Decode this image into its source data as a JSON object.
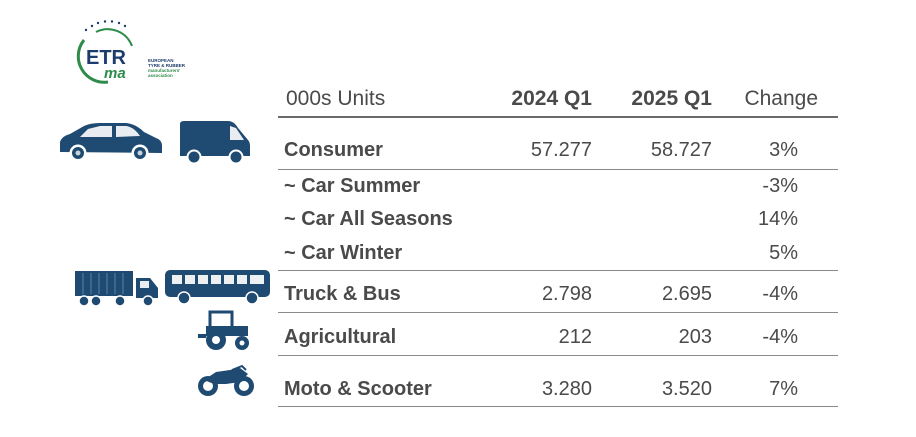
{
  "logo": {
    "mark": "ETRma",
    "line1": "EUROPEAN",
    "line2": "TYRE & RUBBER",
    "line3": "manufacturers'",
    "line4": "association",
    "icon": "etrma-logo-icon",
    "colors": {
      "navy": "#1c3c6e",
      "green": "#2e8b4a"
    }
  },
  "table": {
    "headers": {
      "units": "000s Units",
      "col_2024": "2024 Q1",
      "col_2025": "2025 Q1",
      "col_change": "Change"
    },
    "rows": [
      {
        "label": "Consumer",
        "v2024": "57.277",
        "v2025": "58.727",
        "change": "3%",
        "icons": [
          "car-icon",
          "van-icon"
        ]
      },
      {
        "label": "~ Car Summer",
        "v2024": "",
        "v2025": "",
        "change": "-3%"
      },
      {
        "label": "~ Car All Seasons",
        "v2024": "",
        "v2025": "",
        "change": "14%"
      },
      {
        "label": "~ Car Winter",
        "v2024": "",
        "v2025": "",
        "change": "5%"
      },
      {
        "label": "Truck & Bus",
        "v2024": "2.798",
        "v2025": "2.695",
        "change": "-4%",
        "icons": [
          "truck-icon",
          "bus-icon"
        ]
      },
      {
        "label": "Agricultural",
        "v2024": "212",
        "v2025": "203",
        "change": "-4%",
        "icons": [
          "tractor-icon"
        ]
      },
      {
        "label": "Moto & Scooter",
        "v2024": "3.280",
        "v2025": "3.520",
        "change": "7%",
        "icons": [
          "motorcycle-icon"
        ]
      }
    ]
  },
  "icon_color": "#1f4a72"
}
